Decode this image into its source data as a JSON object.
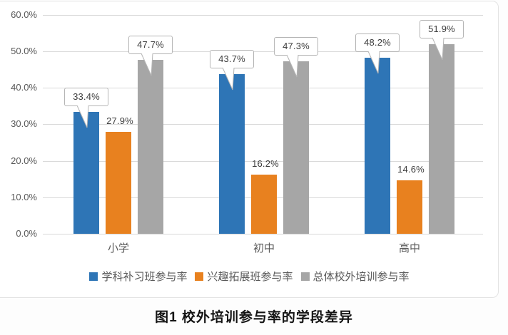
{
  "figure": {
    "caption": "图1 校外培训参与率的学段差异"
  },
  "chart_data": {
    "type": "bar",
    "title": "",
    "xlabel": "",
    "ylabel": "",
    "categories": [
      "小学",
      "初中",
      "高中"
    ],
    "series": [
      {
        "name": "学科补习班参与率",
        "color": "#2e75b6",
        "label_style": "callout",
        "values": [
          33.4,
          43.7,
          48.2
        ],
        "value_labels": [
          "33.4%",
          "43.7%",
          "48.2%"
        ]
      },
      {
        "name": "兴趣拓展班参与率",
        "color": "#e8811f",
        "label_style": "plain",
        "values": [
          27.9,
          16.2,
          14.6
        ],
        "value_labels": [
          "27.9%",
          "16.2%",
          "14.6%"
        ]
      },
      {
        "name": "总体校外培训参与率",
        "color": "#a6a6a6",
        "label_style": "callout",
        "values": [
          47.7,
          47.3,
          51.9
        ],
        "value_labels": [
          "47.7%",
          "47.3%",
          "51.9%"
        ]
      }
    ],
    "y_axis": {
      "min": 0,
      "max": 60,
      "tick_values": [
        0,
        10,
        20,
        30,
        40,
        50,
        60
      ],
      "tick_labels": [
        "0.0%",
        "10.0%",
        "20.0%",
        "30.0%",
        "40.0%",
        "50.0%",
        "60.0%"
      ]
    },
    "grid": true,
    "legend_position": "bottom"
  },
  "colors": {
    "gridline": "#d9d9d9",
    "axis_text": "#595959",
    "value_text": "#3d3d3d",
    "callout_border": "#b5b5b5",
    "panel_border": "#e3e3e3"
  }
}
